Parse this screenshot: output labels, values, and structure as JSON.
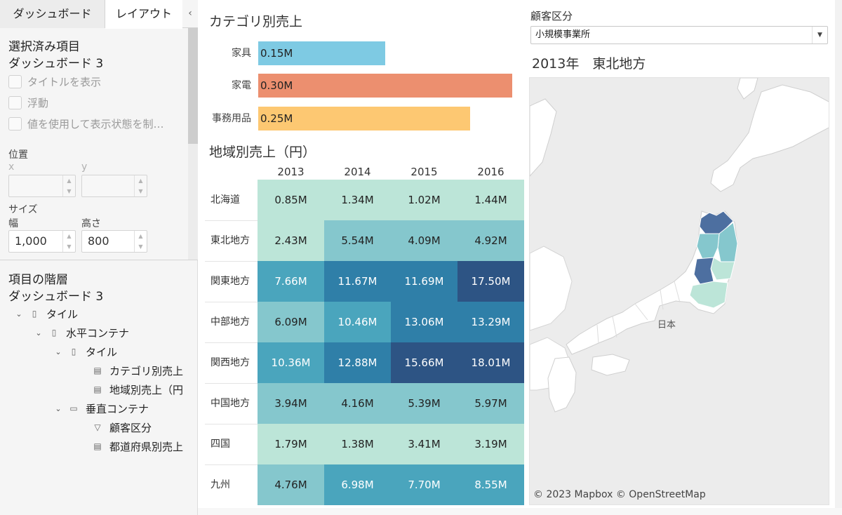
{
  "tabs": {
    "dashboard_label": "ダッシュボード",
    "layout_label": "レイアウト",
    "collapse_glyph": "‹"
  },
  "selected": {
    "title": "選択済み項目",
    "name": "ダッシュボード 3",
    "show_title": "タイトルを表示",
    "floating": "浮動",
    "visibility": "値を使用して表示状態を制…"
  },
  "position": {
    "title": "位置",
    "x_label": "x",
    "y_label": "y"
  },
  "size": {
    "title": "サイズ",
    "width_label": "幅",
    "width_value": "1,000",
    "height_label": "高さ",
    "height_value": "800"
  },
  "hierarchy": {
    "title": "項目の階層",
    "root": "ダッシュボード 3",
    "items": [
      {
        "label": "タイル",
        "icon": "tile-icon"
      },
      {
        "label": "水平コンテナ",
        "icon": "horizontal-container-icon"
      },
      {
        "label": "タイル",
        "icon": "tile-icon"
      },
      {
        "label": "カテゴリ別売上",
        "icon": "sheet-icon"
      },
      {
        "label": "地域別売上（円",
        "icon": "sheet-icon"
      },
      {
        "label": "垂直コンテナ",
        "icon": "vertical-container-icon"
      },
      {
        "label": "顧客区分",
        "icon": "filter-icon"
      },
      {
        "label": "都道府県別売上",
        "icon": "sheet-icon"
      }
    ]
  },
  "filter": {
    "title": "顧客区分",
    "value": "小規模事業所"
  },
  "map": {
    "title": "2013年　東北地方",
    "country_label": "日本",
    "credit": "© 2023 Mapbox © OpenStreetMap"
  },
  "colors": {
    "furniture": "#7ecae3",
    "appliance": "#ec8f6f",
    "office": "#fdc872",
    "heat_1": "#bce5d8",
    "heat_2": "#85c7cd",
    "heat_3": "#4aa5bd",
    "heat_4": "#2f7fa8",
    "heat_5": "#2d5484"
  },
  "chart_data": [
    {
      "type": "bar",
      "title": "カテゴリ別売上",
      "categories": [
        "家具",
        "家電",
        "事務用品"
      ],
      "values": [
        0.15,
        0.3,
        0.25
      ],
      "labels": [
        "0.15M",
        "0.30M",
        "0.25M"
      ]
    },
    {
      "type": "heatmap",
      "title": "地域別売上（円）",
      "columns": [
        "2013",
        "2014",
        "2015",
        "2016"
      ],
      "rows": [
        "北海道",
        "東北地方",
        "関東地方",
        "中部地方",
        "関西地方",
        "中国地方",
        "四国",
        "九州"
      ],
      "values": [
        [
          0.85,
          1.34,
          1.02,
          1.44
        ],
        [
          2.43,
          5.54,
          4.09,
          4.92
        ],
        [
          7.66,
          11.67,
          11.69,
          17.5
        ],
        [
          6.09,
          10.46,
          13.06,
          13.29
        ],
        [
          10.36,
          12.88,
          15.66,
          18.01
        ],
        [
          3.94,
          4.16,
          5.39,
          5.97
        ],
        [
          1.79,
          1.38,
          3.41,
          3.19
        ],
        [
          4.76,
          6.98,
          7.7,
          8.55
        ]
      ],
      "labels": [
        [
          "0.85M",
          "1.34M",
          "1.02M",
          "1.44M"
        ],
        [
          "2.43M",
          "5.54M",
          "4.09M",
          "4.92M"
        ],
        [
          "7.66M",
          "11.67M",
          "11.69M",
          "17.50M"
        ],
        [
          "6.09M",
          "10.46M",
          "13.06M",
          "13.29M"
        ],
        [
          "10.36M",
          "12.88M",
          "15.66M",
          "18.01M"
        ],
        [
          "3.94M",
          "4.16M",
          "5.39M",
          "5.97M"
        ],
        [
          "1.79M",
          "1.38M",
          "3.41M",
          "3.19M"
        ],
        [
          "4.76M",
          "6.98M",
          "7.70M",
          "8.55M"
        ]
      ]
    }
  ]
}
